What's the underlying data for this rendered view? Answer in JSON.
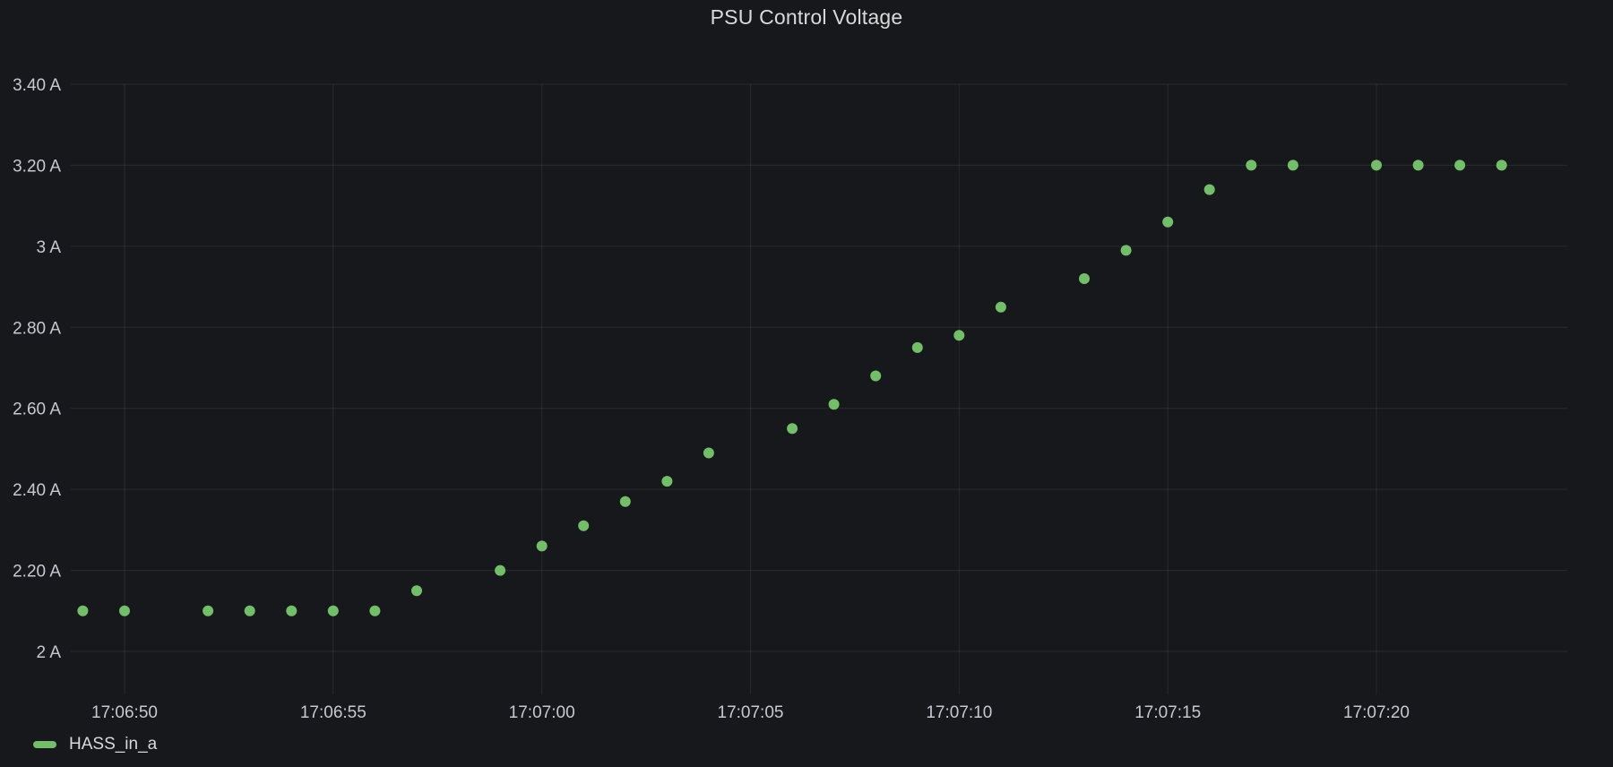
{
  "title": "PSU Control Voltage",
  "legend": {
    "series": [
      {
        "label": "HASS_in_a",
        "color": "#73bf69"
      }
    ]
  },
  "colors": {
    "background": "#17181b",
    "grid": "rgba(255,255,255,0.08)",
    "axis_text": "#c7c8d1",
    "title_text": "#d8d9da",
    "legend_text": "#d8d9da",
    "point": "#73bf69"
  },
  "chart_data": {
    "type": "scatter",
    "title": "PSU Control Voltage",
    "unit": "A",
    "xlabel": "",
    "ylabel": "",
    "grid": true,
    "legend_position": "bottom-left",
    "ylim": [
      1.89,
      3.4
    ],
    "x_ticks": [
      "17:06:50",
      "17:06:55",
      "17:07:00",
      "17:07:05",
      "17:07:10",
      "17:07:15",
      "17:07:20"
    ],
    "y_ticks": [
      {
        "label": "3.40 A",
        "value": 3.4
      },
      {
        "label": "3.20 A",
        "value": 3.2
      },
      {
        "label": "3 A",
        "value": 3.0
      },
      {
        "label": "2.80 A",
        "value": 2.8
      },
      {
        "label": "2.60 A",
        "value": 2.6
      },
      {
        "label": "2.40 A",
        "value": 2.4
      },
      {
        "label": "2.20 A",
        "value": 2.2
      },
      {
        "label": "2 A",
        "value": 2.0
      }
    ],
    "series": [
      {
        "name": "HASS_in_a",
        "color": "#73bf69",
        "points": [
          {
            "time": "17:06:49",
            "value": 2.1
          },
          {
            "time": "17:06:50",
            "value": 2.1
          },
          {
            "time": "17:06:52",
            "value": 2.1
          },
          {
            "time": "17:06:53",
            "value": 2.1
          },
          {
            "time": "17:06:54",
            "value": 2.1
          },
          {
            "time": "17:06:55",
            "value": 2.1
          },
          {
            "time": "17:06:56",
            "value": 2.1
          },
          {
            "time": "17:06:57",
            "value": 2.15
          },
          {
            "time": "17:06:59",
            "value": 2.2
          },
          {
            "time": "17:07:00",
            "value": 2.26
          },
          {
            "time": "17:07:01",
            "value": 2.31
          },
          {
            "time": "17:07:02",
            "value": 2.37
          },
          {
            "time": "17:07:03",
            "value": 2.42
          },
          {
            "time": "17:07:04",
            "value": 2.49
          },
          {
            "time": "17:07:06",
            "value": 2.55
          },
          {
            "time": "17:07:07",
            "value": 2.61
          },
          {
            "time": "17:07:08",
            "value": 2.68
          },
          {
            "time": "17:07:09",
            "value": 2.75
          },
          {
            "time": "17:07:10",
            "value": 2.78
          },
          {
            "time": "17:07:11",
            "value": 2.85
          },
          {
            "time": "17:07:13",
            "value": 2.92
          },
          {
            "time": "17:07:14",
            "value": 2.99
          },
          {
            "time": "17:07:15",
            "value": 3.06
          },
          {
            "time": "17:07:16",
            "value": 3.14
          },
          {
            "time": "17:07:17",
            "value": 3.2
          },
          {
            "time": "17:07:18",
            "value": 3.2
          },
          {
            "time": "17:07:20",
            "value": 3.2
          },
          {
            "time": "17:07:21",
            "value": 3.2
          },
          {
            "time": "17:07:22",
            "value": 3.2
          },
          {
            "time": "17:07:23",
            "value": 3.2
          }
        ]
      }
    ]
  }
}
